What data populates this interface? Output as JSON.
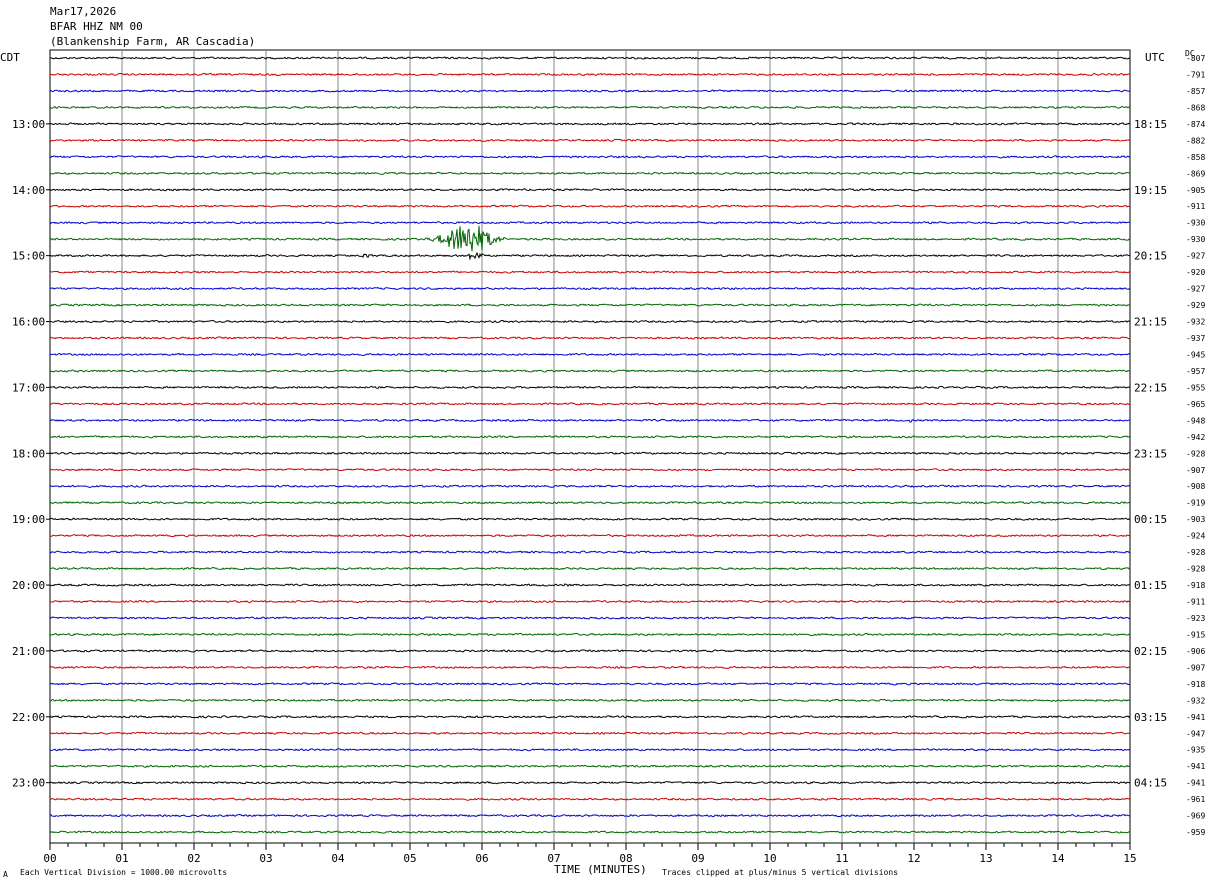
{
  "header": {
    "date": "Mar17,2026",
    "station": "BFAR HHZ NM 00",
    "site": "(Blankenship Farm, AR Cascadia)"
  },
  "left_timezone": "CDT",
  "right_timezone": "UTC",
  "right_column_header": "DC",
  "footer": {
    "xlabel": "TIME (MINUTES)",
    "scale_note": "Each Vertical Division = 1000.00 microvolts",
    "clip_note": "Traces clipped at plus/minus 5 vertical divisions",
    "corner_mark": "A"
  },
  "colors": {
    "cycle": [
      "#000000",
      "#cc0000",
      "#0000cc",
      "#006600"
    ],
    "grid": "#888888"
  },
  "chart_data": {
    "type": "line",
    "title": "",
    "xlabel": "TIME (MINUTES)",
    "xlim": [
      0,
      15
    ],
    "x_ticks": [
      "00",
      "01",
      "02",
      "03",
      "04",
      "05",
      "06",
      "07",
      "08",
      "09",
      "10",
      "11",
      "12",
      "13",
      "14",
      "15"
    ],
    "left_hour_labels": [
      {
        "row": 4,
        "label": "13:00"
      },
      {
        "row": 8,
        "label": "14:00"
      },
      {
        "row": 12,
        "label": "15:00"
      },
      {
        "row": 16,
        "label": "16:00"
      },
      {
        "row": 20,
        "label": "17:00"
      },
      {
        "row": 24,
        "label": "18:00"
      },
      {
        "row": 28,
        "label": "19:00"
      },
      {
        "row": 32,
        "label": "20:00"
      },
      {
        "row": 36,
        "label": "21:00"
      },
      {
        "row": 40,
        "label": "22:00"
      },
      {
        "row": 44,
        "label": "23:00"
      }
    ],
    "right_hour_labels": [
      {
        "row": 4,
        "label": "18:15"
      },
      {
        "row": 8,
        "label": "19:15"
      },
      {
        "row": 12,
        "label": "20:15"
      },
      {
        "row": 16,
        "label": "21:15"
      },
      {
        "row": 20,
        "label": "22:15"
      },
      {
        "row": 24,
        "label": "23:15"
      },
      {
        "row": 28,
        "label": "00:15"
      },
      {
        "row": 32,
        "label": "01:15"
      },
      {
        "row": 36,
        "label": "02:15"
      },
      {
        "row": 40,
        "label": "03:15"
      },
      {
        "row": 44,
        "label": "04:15"
      }
    ],
    "dc_offsets": [
      "-807",
      "-791",
      "-857",
      "-868",
      "-874",
      "-882",
      "-858",
      "-869",
      "-905",
      "-911",
      "-930",
      "-930",
      "-927",
      "-920",
      "-927",
      "-929",
      "-932",
      "-937",
      "-945",
      "-957",
      "-955",
      "-965",
      "-948",
      "-942",
      "-928",
      "-907",
      "-908",
      "-919",
      "-903",
      "-924",
      "-928",
      "-928",
      "-918",
      "-911",
      "-923",
      "-915",
      "-906",
      "-907",
      "-918",
      "-932",
      "-941",
      "-947",
      "-935",
      "-941",
      "-941",
      "-961",
      "-969",
      "-959"
    ],
    "trace_count": 48,
    "events": [
      {
        "row": 11,
        "center_min": 5.8,
        "width_min": 1.8,
        "peak_divisions": 5
      },
      {
        "row": 12,
        "center_min": 5.9,
        "width_min": 0.6,
        "peak_divisions": 1.2
      },
      {
        "row": 12,
        "center_min": 4.4,
        "width_min": 0.5,
        "peak_divisions": 0.5
      },
      {
        "row": 22,
        "center_min": 11.95,
        "width_min": 0.2,
        "peak_divisions": 0.5
      },
      {
        "row": 32,
        "center_min": 7.15,
        "width_min": 0.2,
        "peak_divisions": 0.6
      }
    ]
  }
}
